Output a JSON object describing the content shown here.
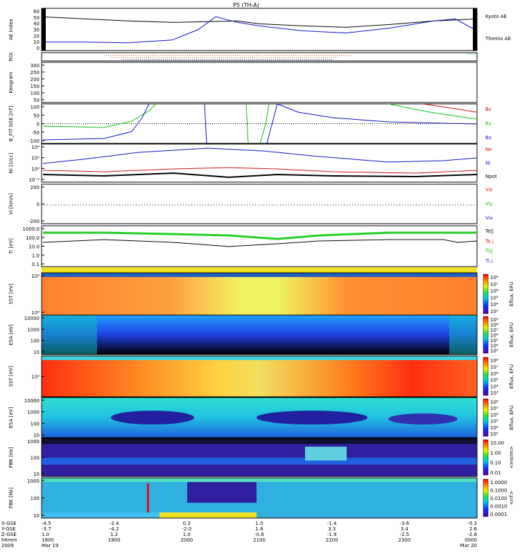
{
  "header": {
    "title": "P5 (TH-A)"
  },
  "chart_data": [
    {
      "type": "line",
      "panel": "ae-index",
      "ylabel": "AE Index",
      "yticks": [
        "60",
        "50",
        "40",
        "30",
        "20",
        "10",
        "0"
      ],
      "ylim": [
        0,
        60
      ],
      "series": [
        {
          "name": "Kyoto AE",
          "color": "#000000",
          "x": [
            0,
            0.1,
            0.2,
            0.3,
            0.38,
            0.45,
            0.5,
            0.6,
            0.7,
            0.8,
            0.9,
            1.0
          ],
          "y": [
            48,
            45,
            42,
            40,
            41,
            42,
            38,
            35,
            33,
            37,
            42,
            45
          ]
        },
        {
          "name": "Themis AE",
          "color": "#1010cc",
          "x": [
            0,
            0.1,
            0.2,
            0.3,
            0.36,
            0.4,
            0.45,
            0.5,
            0.6,
            0.7,
            0.8,
            0.9,
            0.95,
            1.0
          ],
          "y": [
            12,
            12,
            11,
            15,
            30,
            48,
            40,
            35,
            28,
            25,
            32,
            42,
            45,
            28
          ]
        }
      ]
    },
    {
      "type": "line",
      "panel": "roi",
      "ylabel": "ROI"
    },
    {
      "type": "heatmap",
      "panel": "keogram",
      "ylabel": "Keogram",
      "yticks": [
        "300",
        "250",
        "200",
        "150",
        "100",
        "50"
      ]
    },
    {
      "type": "line",
      "panel": "b-field",
      "ylabel": "B_FIT GSE [nT]",
      "yticks": [
        "100",
        "50",
        "0",
        "-50",
        "-100"
      ],
      "ylim": [
        -100,
        100
      ],
      "series": [
        {
          "name": "Bz",
          "color": "#d01010"
        },
        {
          "name": "By",
          "color": "#10c010"
        },
        {
          "name": "Bx",
          "color": "#1010cc"
        }
      ]
    },
    {
      "type": "line",
      "panel": "density",
      "ylabel": "Ni [1/cc]",
      "yticks": [
        "10⁴",
        "10²",
        "10⁰",
        "10⁻²"
      ],
      "series": [
        {
          "name": "Ne",
          "color": "#d01010"
        },
        {
          "name": "Ni",
          "color": "#1010cc"
        },
        {
          "name": "Npot",
          "color": "#000000"
        }
      ]
    },
    {
      "type": "line",
      "panel": "velocity",
      "ylabel": "Vi [km/s]",
      "yticks": [
        "200",
        "0",
        "-200"
      ],
      "ylim": [
        -300,
        300
      ],
      "series": [
        {
          "name": "Viz",
          "color": "#d01010"
        },
        {
          "name": "Viy",
          "color": "#10c010"
        },
        {
          "name": "Vix",
          "color": "#1010cc"
        }
      ]
    },
    {
      "type": "line",
      "panel": "temperature",
      "ylabel": "Ti [eV]",
      "yticks": [
        "1000.0",
        "100.0",
        "10.0",
        "1.0",
        "0.1"
      ],
      "series": [
        {
          "name": "Te||",
          "color": "#000000"
        },
        {
          "name": "Te⊥",
          "color": "#d01010"
        },
        {
          "name": "Ti||",
          "color": "#10c010"
        },
        {
          "name": "Ti⊥",
          "color": "#1010cc"
        }
      ]
    },
    {
      "type": "heatmap",
      "panel": "sst-electron",
      "ylabel": "SST [eV]",
      "yticks": [
        "10⁵",
        "10⁴"
      ],
      "colorbar_ticks": [
        "10⁸",
        "10⁷",
        "10⁶",
        "10⁵",
        "10⁴",
        "10³"
      ],
      "colorbar_label": "Eflux, EFU"
    },
    {
      "type": "heatmap",
      "panel": "esa-electron",
      "ylabel": "ESA [eV]",
      "yticks": [
        "10000",
        "1000",
        "100",
        "10"
      ],
      "colorbar_ticks": [
        "10⁹",
        "10⁸",
        "10⁷",
        "10⁶",
        "10⁵",
        "10⁴",
        "10³"
      ],
      "colorbar_label": "Eflux, EFU"
    },
    {
      "type": "heatmap",
      "panel": "sst-ion",
      "ylabel": "SST [eV]",
      "yticks": [
        "10⁵"
      ],
      "colorbar_ticks": [
        "10⁸",
        "10⁷",
        "10⁶",
        "10⁵",
        "10⁴",
        "10³"
      ],
      "colorbar_label": "Eflux, EFU"
    },
    {
      "type": "heatmap",
      "panel": "esa-ion",
      "ylabel": "ESA [eV]",
      "yticks": [
        "10000",
        "1000",
        "100",
        "10"
      ],
      "colorbar_ticks": [
        "10⁸",
        "10⁷",
        "10⁶",
        "10⁵",
        "10⁴",
        "10³"
      ],
      "colorbar_label": "Eflux, EFU"
    },
    {
      "type": "heatmap",
      "panel": "fbk-edc",
      "ylabel": "FBK [Hz]",
      "yticks": [
        "1000",
        "100",
        "10"
      ],
      "colorbar_ticks": [
        "10.00",
        "1.00",
        "0.10",
        "0.01"
      ],
      "colorbar_label": "<mV/m>"
    },
    {
      "type": "heatmap",
      "panel": "fbk-scm",
      "ylabel": "FBK [Hz]",
      "yticks": [
        "1000",
        "100",
        "10"
      ],
      "colorbar_ticks": [
        "1.0000",
        "0.1000",
        "0.0100",
        "0.0010",
        "0.0001"
      ],
      "colorbar_label": "<nT>"
    }
  ],
  "time_axis": {
    "row_labels": [
      "X-GSE",
      "Y-GSE",
      "Z-GSE",
      "hhmm",
      "2009"
    ],
    "ticks": [
      {
        "x": "-4.5",
        "y": "-3.7",
        "z": "1.0",
        "hhmm": "1800",
        "date": "Mar 19"
      },
      {
        "x": "-2.4",
        "y": "-4.2",
        "z": "1.2",
        "hhmm": "1900",
        "date": ""
      },
      {
        "x": "0.3",
        "y": "-2.0",
        "z": "1.0",
        "hhmm": "2000",
        "date": ""
      },
      {
        "x": "1.0",
        "y": "1.6",
        "z": "-0.6",
        "hhmm": "2100",
        "date": ""
      },
      {
        "x": "-1.4",
        "y": "3.3",
        "z": "-1.9",
        "hhmm": "2200",
        "date": ""
      },
      {
        "x": "-3.6",
        "y": "3.4",
        "z": "-2.5",
        "hhmm": "2300",
        "date": ""
      },
      {
        "x": "-5.3",
        "y": "2.6",
        "z": "-2.8",
        "hhmm": "0000",
        "date": "Mar 20"
      }
    ]
  },
  "colors": {
    "bz": "#d01010",
    "by": "#10c010",
    "bx": "#1010cc"
  }
}
